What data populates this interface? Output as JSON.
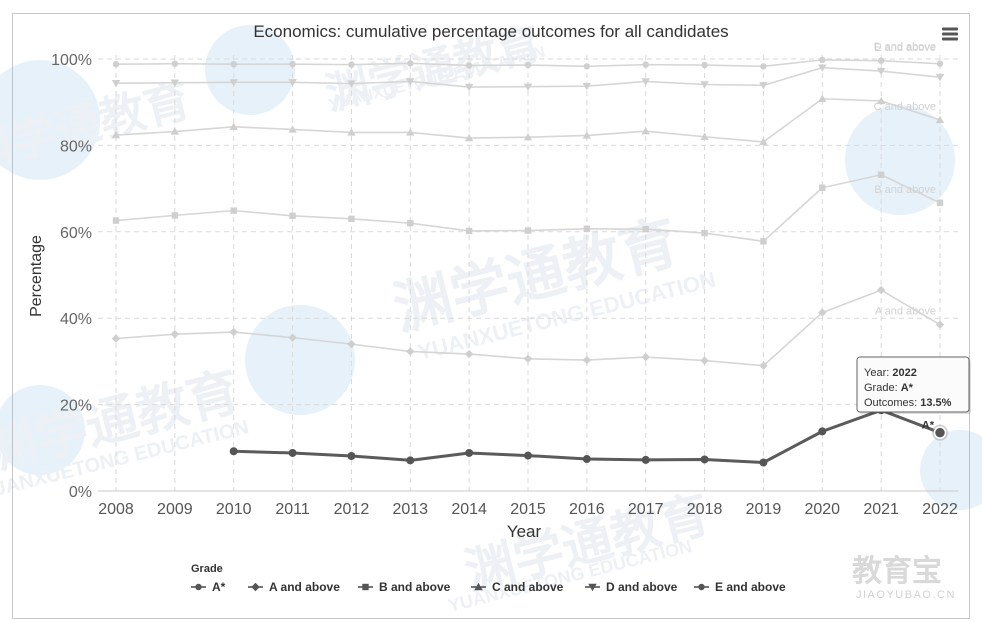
{
  "chart_data": {
    "type": "line",
    "title": "Economics: cumulative percentage outcomes for all candidates",
    "xlabel": "Year",
    "ylabel": "Percentage",
    "x": [
      2008,
      2009,
      2010,
      2011,
      2012,
      2013,
      2014,
      2015,
      2016,
      2017,
      2018,
      2019,
      2020,
      2021,
      2022
    ],
    "ylim": [
      0,
      100
    ],
    "y_ticks": [
      "0%",
      "20%",
      "40%",
      "60%",
      "80%",
      "100%"
    ],
    "grid": true,
    "legend_title": "Grade",
    "legend_position": "bottom",
    "series": [
      {
        "name": "A*",
        "marker": "circle",
        "highlighted": true,
        "color": "#5b5b5b",
        "values": [
          null,
          null,
          9.2,
          8.8,
          8.1,
          7.1,
          8.8,
          8.2,
          7.4,
          7.2,
          7.3,
          6.6,
          13.8,
          18.7,
          13.5
        ]
      },
      {
        "name": "A and above",
        "marker": "diamond",
        "highlighted": false,
        "color": "#d6d6d6",
        "values": [
          35.3,
          36.3,
          36.8,
          35.5,
          34.0,
          32.3,
          31.7,
          30.6,
          30.3,
          31.0,
          30.2,
          29.0,
          41.3,
          46.5,
          38.5
        ]
      },
      {
        "name": "B and above",
        "marker": "square",
        "highlighted": false,
        "color": "#d6d6d6",
        "values": [
          62.6,
          63.8,
          64.9,
          63.7,
          63.0,
          62.0,
          60.2,
          60.3,
          60.7,
          60.6,
          59.7,
          57.8,
          70.2,
          73.2,
          66.7
        ]
      },
      {
        "name": "C and above",
        "marker": "triangle",
        "highlighted": false,
        "color": "#d6d6d6",
        "values": [
          82.4,
          83.2,
          84.3,
          83.7,
          83.0,
          83.0,
          81.7,
          81.9,
          82.3,
          83.3,
          82.0,
          80.8,
          90.8,
          90.3,
          85.9
        ]
      },
      {
        "name": "D and above",
        "marker": "triangle-down",
        "highlighted": false,
        "color": "#d6d6d6",
        "values": [
          94.4,
          94.5,
          94.6,
          94.6,
          94.3,
          94.8,
          93.5,
          93.6,
          93.7,
          94.8,
          94.1,
          93.9,
          98.0,
          97.2,
          95.8
        ]
      },
      {
        "name": "E and above",
        "marker": "circle",
        "highlighted": false,
        "color": "#d6d6d6",
        "values": [
          98.8,
          98.9,
          98.8,
          98.8,
          98.7,
          99.0,
          98.5,
          98.6,
          98.3,
          98.7,
          98.6,
          98.3,
          99.8,
          99.6,
          98.9
        ]
      }
    ],
    "series_end_labels": [
      {
        "series": "E and above",
        "text": "E and above"
      },
      {
        "series": "D and above",
        "text": "D and above"
      },
      {
        "series": "C and above",
        "text": "C and above"
      },
      {
        "series": "B and above",
        "text": "B and above"
      },
      {
        "series": "A and above",
        "text": "A and above"
      },
      {
        "series": "A*",
        "text": "A*"
      }
    ],
    "tooltip": {
      "year_label": "Year:",
      "year_value": "2022",
      "grade_label": "Grade:",
      "grade_value": "A*",
      "outcome_label": "Outcomes:",
      "outcome_value": "13.5%"
    }
  },
  "watermark": {
    "text_cn": "渊学通教育",
    "text_en": "YUANXUETONG EDUCATION",
    "corner_logo_cn": "教育宝",
    "corner_logo_en": "JIAOYUBAO.CN"
  },
  "menu_icon": "hamburger-menu-icon"
}
